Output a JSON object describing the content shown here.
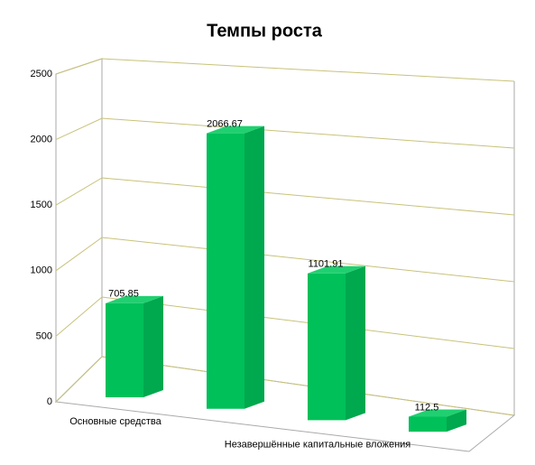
{
  "chart_data": {
    "type": "bar3d",
    "title": "Темпы роста",
    "categories": [
      "Основные средства",
      null,
      "Незавершённые капитальные вложения",
      null
    ],
    "values": [
      705.85,
      2066.67,
      1101.91,
      112.5
    ],
    "color": "#00c05a",
    "ylim": [
      0,
      2500
    ],
    "yticks": [
      0,
      500,
      1000,
      1500,
      2000,
      2500
    ],
    "grid": true
  }
}
